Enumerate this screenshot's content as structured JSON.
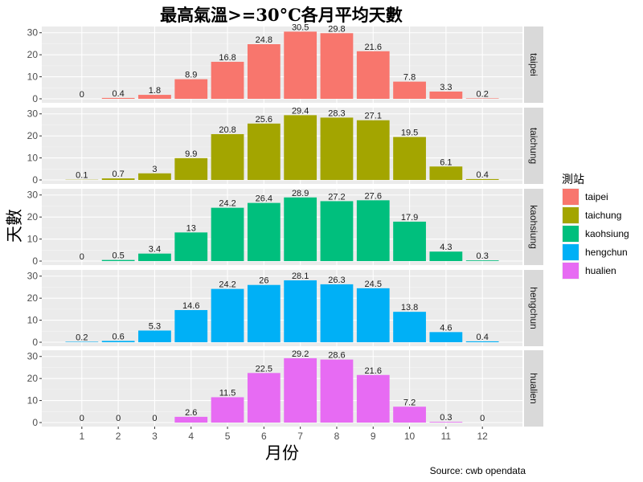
{
  "chart_data": {
    "type": "bar",
    "title": "最高氣溫>=30°C各月平均天數",
    "xlabel": "月份",
    "ylabel": "天數",
    "caption": "Source: cwb opendata",
    "categories": [
      "1",
      "2",
      "3",
      "4",
      "5",
      "6",
      "7",
      "8",
      "9",
      "10",
      "11",
      "12"
    ],
    "ylim": [
      0,
      31
    ],
    "yticks": [
      0,
      10,
      20,
      30
    ],
    "grid": true,
    "facet": "rows",
    "legend": {
      "title": "測站",
      "position": "right"
    },
    "series": [
      {
        "name": "taipei",
        "color": "#F8766D",
        "values": [
          0,
          0.4,
          1.8,
          8.9,
          16.8,
          24.8,
          30.5,
          29.8,
          21.6,
          7.8,
          3.3,
          0.2
        ]
      },
      {
        "name": "taichung",
        "color": "#A3A500",
        "values": [
          0.1,
          0.7,
          3,
          9.9,
          20.8,
          25.6,
          29.4,
          28.3,
          27.1,
          19.5,
          6.1,
          0.4
        ]
      },
      {
        "name": "kaohsiung",
        "color": "#00BF7D",
        "values": [
          0,
          0.5,
          3.4,
          13,
          24.2,
          26.4,
          28.9,
          27.2,
          27.6,
          17.9,
          4.3,
          0.3
        ]
      },
      {
        "name": "hengchun",
        "color": "#00B0F6",
        "values": [
          0.2,
          0.6,
          5.3,
          14.6,
          24.2,
          26,
          28.1,
          26.3,
          24.5,
          13.8,
          4.6,
          0.4
        ]
      },
      {
        "name": "hualien",
        "color": "#E76BF3",
        "values": [
          0,
          0,
          0,
          2.6,
          11.5,
          22.5,
          29.2,
          28.6,
          21.6,
          7.2,
          0.3,
          0
        ]
      }
    ]
  }
}
